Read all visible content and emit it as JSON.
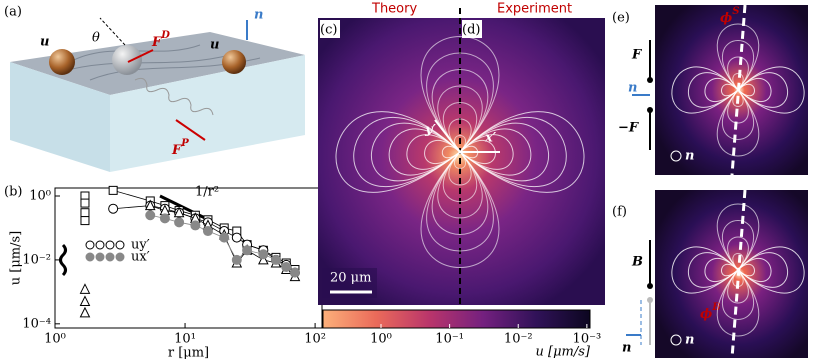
{
  "panel_labels": [
    "(a)",
    "(b)",
    "(c)",
    "(d)",
    "(e)",
    "(f)"
  ],
  "panel_a": {
    "u_left": "u",
    "theta": "θ",
    "drag": {
      "base": "F",
      "sup": "D"
    },
    "u_right": "u",
    "n": "n",
    "propulsion": {
      "base": "F",
      "sup": "P"
    }
  },
  "chart_data": [
    {
      "type": "line",
      "xlabel": "r [μm]",
      "ylabel": "u [μm/s]",
      "xscale": "log",
      "yscale": "log",
      "xlim": [
        1,
        113
      ],
      "ylim": [
        7.4e-05,
        1.78
      ],
      "xticks": [
        {
          "value": 1,
          "label": "10⁰"
        },
        {
          "value": 10,
          "label": "10¹"
        },
        {
          "value": 100,
          "label": "10²"
        }
      ],
      "yticks": [
        {
          "value": 0.0001,
          "label": "10⁻⁴"
        },
        {
          "value": 0.01,
          "label": "10⁻²"
        },
        {
          "value": 1,
          "label": "10⁰"
        }
      ],
      "annotation": "1/r²",
      "series": [
        {
          "marker": "square",
          "color": "#000000",
          "fill": "none",
          "line": true,
          "x": [
            2.8,
            5.4,
            7,
            9,
            12,
            15,
            20,
            25,
            30,
            40,
            50,
            60,
            70
          ],
          "values": [
            1.5,
            0.7,
            0.5,
            0.35,
            0.25,
            0.18,
            0.1,
            0.08,
            0.03,
            0.02,
            0.012,
            0.008,
            0.005
          ]
        },
        {
          "name": "uy′",
          "marker": "circle",
          "color": "#000000",
          "fill": "none",
          "line": true,
          "x": [
            2.8,
            5.4,
            7,
            9,
            12,
            15,
            20,
            25,
            30,
            40,
            50,
            60,
            70
          ],
          "values": [
            0.4,
            0.5,
            0.4,
            0.3,
            0.2,
            0.15,
            0.08,
            0.05,
            0.03,
            0.02,
            0.01,
            0.007,
            0.004
          ]
        },
        {
          "marker": "triangle",
          "color": "#000000",
          "fill": "none",
          "line": true,
          "x": [
            5.4,
            7,
            9,
            12,
            15,
            20,
            25,
            30,
            40,
            50,
            60,
            70
          ],
          "values": [
            0.5,
            0.35,
            0.3,
            0.2,
            0.12,
            0.06,
            0.008,
            0.02,
            0.01,
            0.008,
            0.005,
            0.003
          ]
        },
        {
          "name": "ux′",
          "marker": "circle",
          "color": "#888888",
          "fill": "#888888",
          "line": true,
          "x": [
            5.4,
            7,
            9,
            12,
            15,
            20,
            25,
            30,
            40,
            50,
            60,
            70
          ],
          "values": [
            0.25,
            0.2,
            0.15,
            0.12,
            0.08,
            0.05,
            0.01,
            0.02,
            0.015,
            0.01,
            0.006,
            0.004
          ]
        },
        {
          "marker": "square",
          "color": "#000000",
          "fill": "none",
          "line": false,
          "x": [
            1.7,
            1.7,
            1.7,
            1.7
          ],
          "values": [
            1,
            0.6,
            0.3,
            0.17
          ]
        },
        {
          "marker": "triangle",
          "color": "#000000",
          "fill": "none",
          "line": false,
          "x": [
            1.7,
            1.7,
            1.7
          ],
          "values": [
            0.0012,
            0.0005,
            0.00022
          ]
        }
      ]
    },
    {
      "type": "colorbar",
      "scale": "log",
      "xlim": [
        7,
        0.0009
      ],
      "label": "u [μm/s]",
      "colors": [
        "#fcb07a",
        "#ea6a5a",
        "#b9356b",
        "#74207f",
        "#301258",
        "#0c0620"
      ],
      "xticks": [
        {
          "value": 1,
          "label": "10⁰"
        },
        {
          "value": 0.1,
          "label": "10⁻¹"
        },
        {
          "value": 0.01,
          "label": "10⁻²"
        },
        {
          "value": 0.001,
          "label": "10⁻³"
        }
      ]
    }
  ],
  "panel_cd": {
    "theory": "Theory",
    "experiment": "Experiment",
    "scale": "20 μm",
    "y": "y′",
    "x": "x′"
  },
  "panel_e": {
    "phi": {
      "base": "ϕ",
      "sup": "S"
    },
    "F": "F",
    "minus_F": "−F",
    "n": "n",
    "n_circle": "n"
  },
  "panel_f": {
    "phi": {
      "base": "ϕ",
      "sup": "B"
    },
    "B": "B",
    "n": "n",
    "n_circle": "n"
  }
}
